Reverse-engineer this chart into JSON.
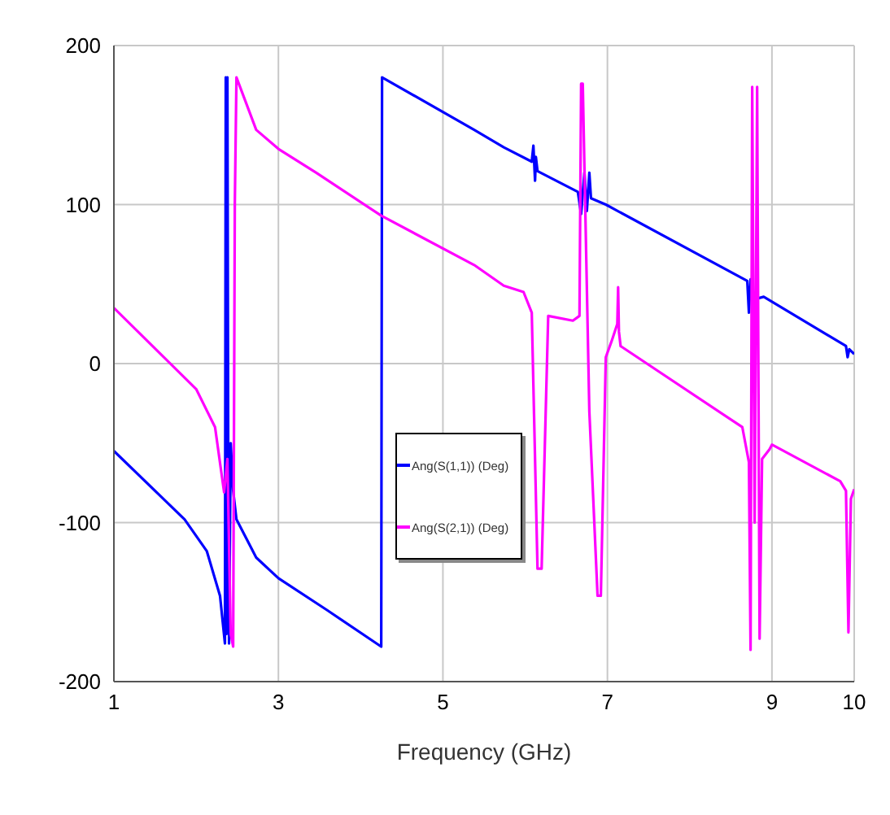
{
  "chart_data": {
    "type": "line",
    "xlabel": "Frequency (GHz)",
    "xlim": [
      1,
      10
    ],
    "xticks": [
      1,
      3,
      5,
      7,
      9,
      10
    ],
    "ylim": [
      -200,
      200
    ],
    "yticks": [
      -200,
      -100,
      0,
      100,
      200
    ],
    "grid": true,
    "legend": "left",
    "series": [
      {
        "name": "Ang(S(1,1)) (Deg)",
        "color": "#0000ff",
        "x": [
          1,
          1.86,
          2.13,
          2.29,
          2.35,
          2.36,
          2.37,
          2.38,
          2.39,
          2.4,
          2.42,
          2.45,
          2.49,
          2.73,
          3.0,
          3.59,
          4.25,
          4.26,
          5.38,
          5.74,
          6.08,
          6.1,
          6.12,
          6.13,
          6.15,
          6.64,
          6.68,
          6.72,
          6.75,
          6.78,
          6.8,
          6.98,
          8.7,
          8.72,
          8.74,
          8.76,
          8.9,
          9.9,
          9.92,
          9.94,
          10
        ],
        "values": [
          -55,
          -98,
          -118,
          -146,
          -176,
          180,
          -170,
          180,
          -60,
          -176,
          -50,
          -80,
          -98,
          -122,
          -135,
          -155,
          -178,
          180,
          147,
          136,
          127,
          137,
          115,
          130,
          121,
          108,
          94,
          120,
          96,
          120,
          104,
          100,
          52,
          32,
          53,
          40,
          42,
          11,
          4,
          9,
          6
        ]
      },
      {
        "name": "Ang(S(2,1)) (Deg)",
        "color": "#ff00ff",
        "x": [
          1,
          2.0,
          2.23,
          2.34,
          2.38,
          2.42,
          2.45,
          2.47,
          2.49,
          2.73,
          3.0,
          3.46,
          4.25,
          5.38,
          5.74,
          5.98,
          6.08,
          6.15,
          6.2,
          6.28,
          6.58,
          6.66,
          6.68,
          6.7,
          6.78,
          6.88,
          6.92,
          6.98,
          7.05,
          7.12,
          7.13,
          7.14,
          7.16,
          8.64,
          8.72,
          8.74,
          8.76,
          8.79,
          8.82,
          8.85,
          8.88,
          8.97,
          9.0,
          9.83,
          9.9,
          9.93,
          9.96,
          10
        ],
        "values": [
          35,
          -16,
          -40,
          -81,
          -60,
          -170,
          -178,
          100,
          180,
          147,
          135,
          120,
          93,
          62,
          49,
          45,
          32,
          -129,
          -129,
          30,
          27,
          30,
          176,
          176,
          -30,
          -146,
          -146,
          4,
          14,
          25,
          48,
          20,
          11,
          -40,
          -62,
          -180,
          174,
          -100,
          174,
          -173,
          -60,
          -54,
          -51,
          -74,
          -80,
          -169,
          -85,
          -79
        ]
      }
    ]
  }
}
